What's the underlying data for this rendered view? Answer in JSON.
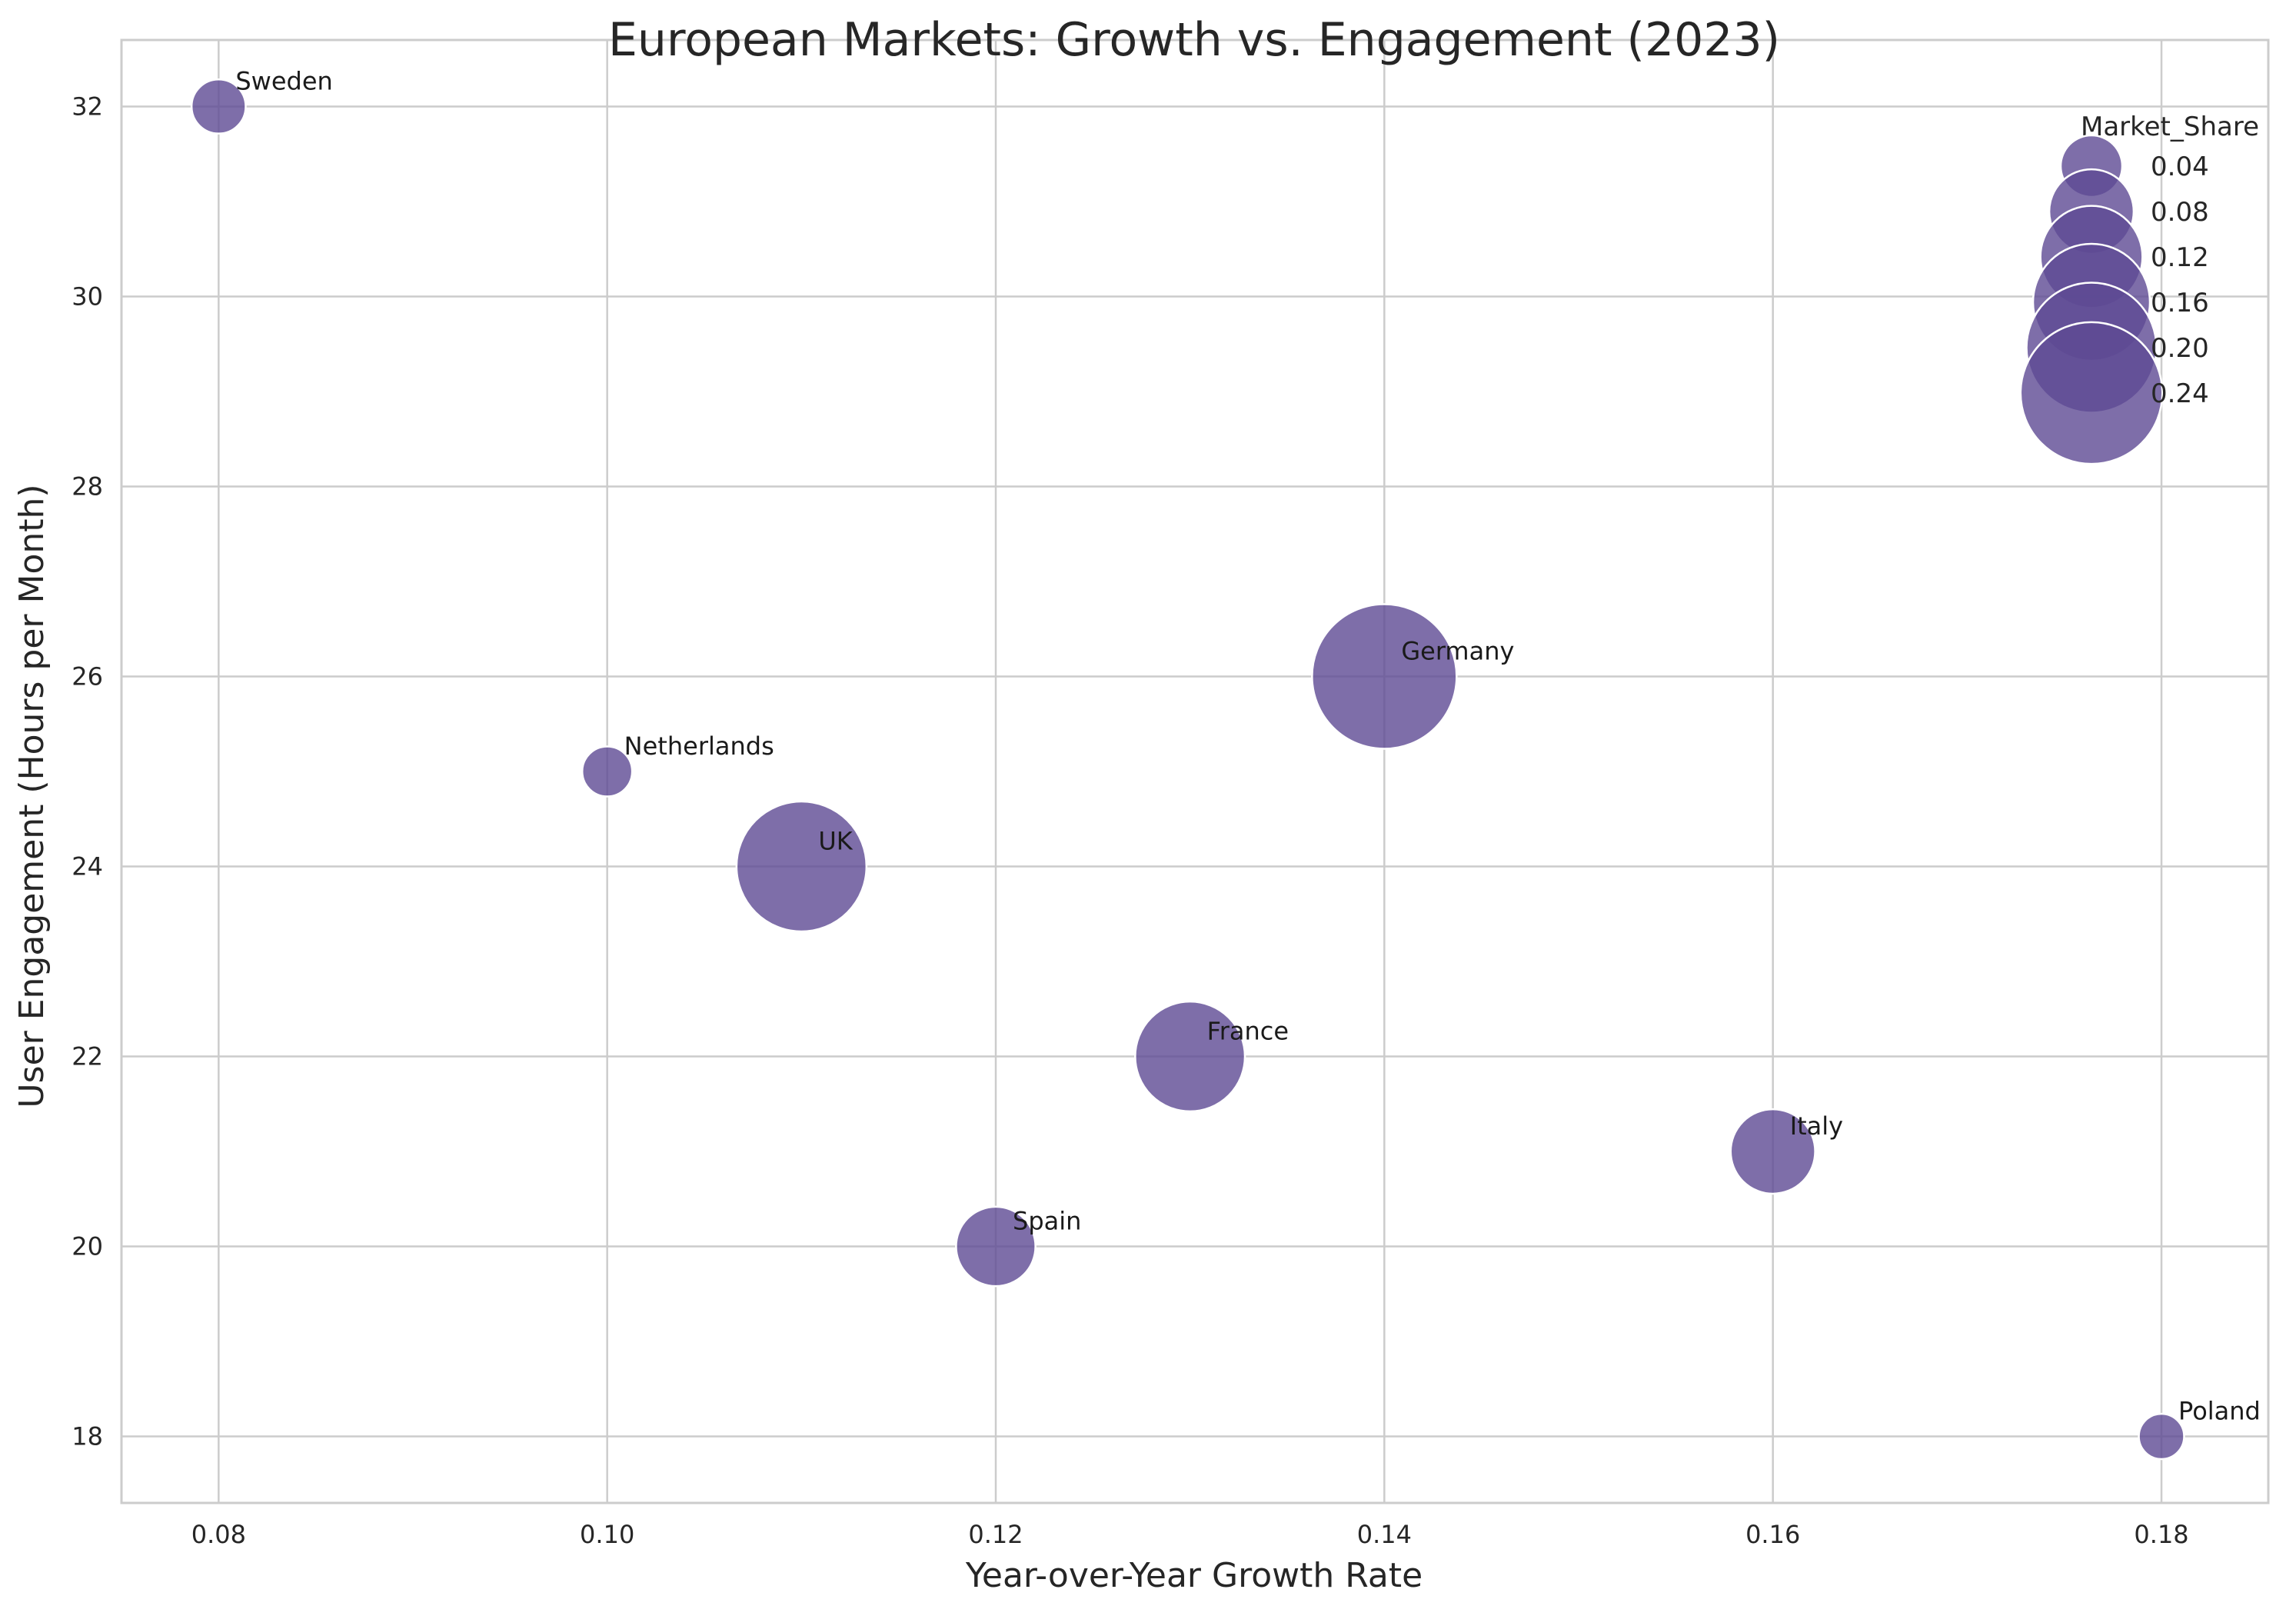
{
  "chart_data": {
    "type": "scatter",
    "title": "European Markets: Growth vs. Engagement (2023)",
    "xlabel": "Year-over-Year Growth Rate",
    "ylabel": "User Engagement (Hours per Month)",
    "xlim": [
      0.075,
      0.1855
    ],
    "ylim": [
      17.3,
      32.7
    ],
    "xticks": [
      0.08,
      0.1,
      0.12,
      0.14,
      0.16,
      0.18
    ],
    "xtick_labels": [
      "0.08",
      "0.10",
      "0.12",
      "0.14",
      "0.16",
      "0.18"
    ],
    "yticks": [
      18,
      20,
      22,
      24,
      26,
      28,
      30,
      32
    ],
    "ytick_labels": [
      "18",
      "20",
      "22",
      "24",
      "26",
      "28",
      "30",
      "32"
    ],
    "grid": true,
    "marker_color": "#5e4a94",
    "marker_alpha": 0.8,
    "size_variable": "Market_Share",
    "points": [
      {
        "label": "Sweden",
        "x": 0.08,
        "y": 32,
        "market_share": 0.03
      },
      {
        "label": "Netherlands",
        "x": 0.1,
        "y": 25,
        "market_share": 0.025
      },
      {
        "label": "UK",
        "x": 0.11,
        "y": 24,
        "market_share": 0.2
      },
      {
        "label": "Spain",
        "x": 0.12,
        "y": 20,
        "market_share": 0.07
      },
      {
        "label": "France",
        "x": 0.13,
        "y": 22,
        "market_share": 0.14
      },
      {
        "label": "Germany",
        "x": 0.14,
        "y": 26,
        "market_share": 0.25
      },
      {
        "label": "Italy",
        "x": 0.16,
        "y": 21,
        "market_share": 0.08
      },
      {
        "label": "Poland",
        "x": 0.18,
        "y": 18,
        "market_share": 0.02
      }
    ],
    "legend": {
      "title": "Market_Share",
      "placement": "top-right",
      "entries": [
        {
          "label": "0.04",
          "value": 0.04
        },
        {
          "label": "0.08",
          "value": 0.08
        },
        {
          "label": "0.12",
          "value": 0.12
        },
        {
          "label": "0.16",
          "value": 0.16
        },
        {
          "label": "0.20",
          "value": 0.2
        },
        {
          "label": "0.24",
          "value": 0.24
        }
      ]
    }
  }
}
